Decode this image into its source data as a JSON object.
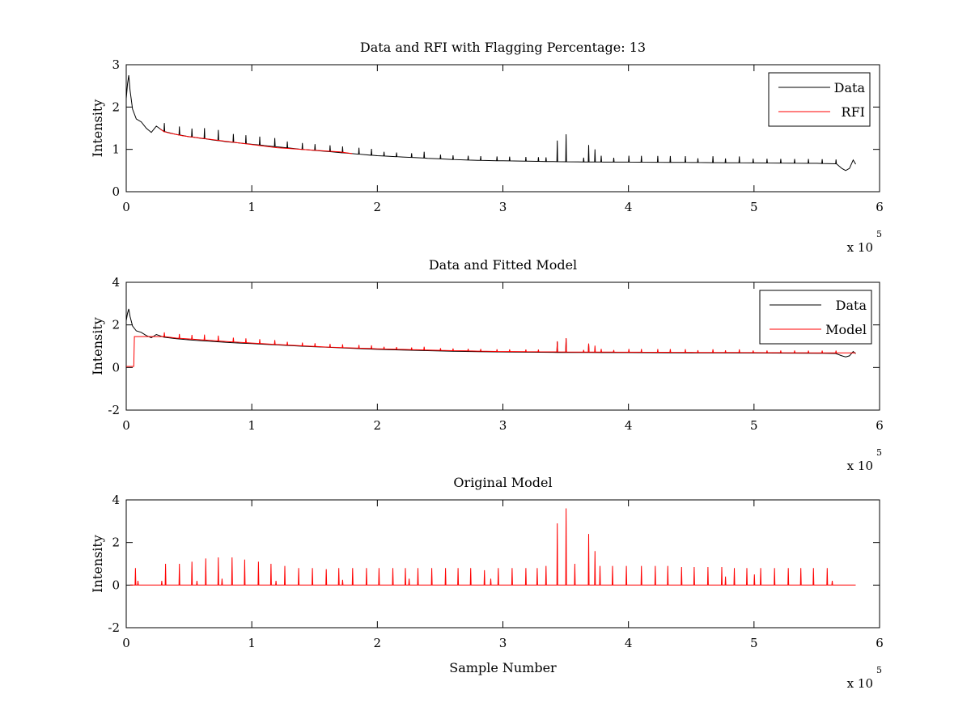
{
  "chart_data": [
    {
      "type": "line",
      "title": "Data and RFI with Flagging Percentage: 13",
      "xlabel": "",
      "ylabel": "Intensity",
      "xlim": [
        0,
        600000
      ],
      "ylim": [
        0,
        3
      ],
      "xticks": [
        0,
        100000,
        200000,
        300000,
        400000,
        500000,
        600000
      ],
      "xtick_labels": [
        "0",
        "1",
        "2",
        "3",
        "4",
        "5",
        "6"
      ],
      "yticks": [
        0,
        1,
        2,
        3
      ],
      "ytick_labels": [
        "0",
        "1",
        "2",
        "3"
      ],
      "x_multiplier": "x 10",
      "x_multiplier_exp": "5",
      "grid": false,
      "legend_position": "top-right",
      "series": [
        {
          "name": "Data",
          "color": "#000000",
          "x": [
            0,
            1000,
            2000,
            3000,
            5000,
            8000,
            12000,
            16000,
            20000,
            24000,
            30000,
            40000,
            50000,
            60000,
            70000,
            80000,
            90000,
            100000,
            110000,
            120000,
            140000,
            160000,
            180000,
            200000,
            220000,
            240000,
            260000,
            280000,
            300000,
            320000,
            340000,
            360000,
            380000,
            400000,
            450000,
            500000,
            550000,
            565000,
            570000,
            573000,
            576000,
            579000,
            581000
          ],
          "values": [
            2.2,
            2.55,
            2.75,
            2.4,
            1.95,
            1.72,
            1.65,
            1.5,
            1.4,
            1.55,
            1.42,
            1.35,
            1.3,
            1.26,
            1.22,
            1.18,
            1.15,
            1.12,
            1.09,
            1.06,
            1.0,
            0.95,
            0.9,
            0.85,
            0.82,
            0.79,
            0.76,
            0.74,
            0.73,
            0.72,
            0.71,
            0.705,
            0.7,
            0.7,
            0.69,
            0.68,
            0.67,
            0.66,
            0.55,
            0.5,
            0.55,
            0.75,
            0.65
          ],
          "spikes": [
            [
              30000,
              0.2
            ],
            [
              42000,
              0.2
            ],
            [
              52000,
              0.2
            ],
            [
              62000,
              0.25
            ],
            [
              73000,
              0.25
            ],
            [
              85000,
              0.2
            ],
            [
              95000,
              0.2
            ],
            [
              106000,
              0.2
            ],
            [
              118000,
              0.2
            ],
            [
              128000,
              0.15
            ],
            [
              140000,
              0.15
            ],
            [
              150000,
              0.15
            ],
            [
              162000,
              0.15
            ],
            [
              172000,
              0.15
            ],
            [
              185000,
              0.15
            ],
            [
              195000,
              0.15
            ],
            [
              205000,
              0.1
            ],
            [
              215000,
              0.1
            ],
            [
              227000,
              0.1
            ],
            [
              237000,
              0.15
            ],
            [
              250000,
              0.1
            ],
            [
              260000,
              0.1
            ],
            [
              272000,
              0.1
            ],
            [
              282000,
              0.1
            ],
            [
              295000,
              0.1
            ],
            [
              305000,
              0.1
            ],
            [
              318000,
              0.1
            ],
            [
              328000,
              0.1
            ],
            [
              334000,
              0.1
            ],
            [
              343000,
              0.5
            ],
            [
              350000,
              0.65
            ],
            [
              364000,
              0.1
            ],
            [
              368000,
              0.4
            ],
            [
              373000,
              0.3
            ],
            [
              378000,
              0.15
            ],
            [
              388000,
              0.1
            ],
            [
              400000,
              0.15
            ],
            [
              410000,
              0.15
            ],
            [
              423000,
              0.15
            ],
            [
              433000,
              0.15
            ],
            [
              445000,
              0.15
            ],
            [
              455000,
              0.1
            ],
            [
              467000,
              0.15
            ],
            [
              477000,
              0.1
            ],
            [
              488000,
              0.15
            ],
            [
              499000,
              0.1
            ],
            [
              510000,
              0.1
            ],
            [
              521000,
              0.1
            ],
            [
              532000,
              0.1
            ],
            [
              543000,
              0.1
            ],
            [
              554000,
              0.1
            ],
            [
              565000,
              0.1
            ]
          ]
        },
        {
          "name": "RFI",
          "color": "#ff0000",
          "x": [
            27000,
            30000,
            35000,
            40000,
            45000,
            120000,
            130000,
            140000,
            150000,
            160000,
            170000,
            180000
          ],
          "values": [
            1.48,
            1.42,
            1.38,
            1.35,
            1.32,
            1.04,
            1.02,
            1.0,
            0.98,
            0.96,
            0.94,
            0.9
          ]
        }
      ]
    },
    {
      "type": "line",
      "title": "Data and Fitted Model",
      "xlabel": "",
      "ylabel": "Intensity",
      "xlim": [
        0,
        600000
      ],
      "ylim": [
        -2,
        4
      ],
      "xticks": [
        0,
        100000,
        200000,
        300000,
        400000,
        500000,
        600000
      ],
      "xtick_labels": [
        "0",
        "1",
        "2",
        "3",
        "4",
        "5",
        "6"
      ],
      "yticks": [
        -2,
        0,
        2,
        4
      ],
      "ytick_labels": [
        "-2",
        "0",
        "2",
        "4"
      ],
      "x_multiplier": "x 10",
      "x_multiplier_exp": "5",
      "grid": false,
      "legend_position": "top-right",
      "series": [
        {
          "name": "Data",
          "color": "#000000",
          "x": [
            0,
            1000,
            2000,
            3000,
            5000,
            8000,
            12000,
            16000,
            20000,
            24000,
            30000,
            40000,
            50000,
            60000,
            70000,
            80000,
            90000,
            100000,
            110000,
            120000,
            140000,
            160000,
            180000,
            200000,
            220000,
            240000,
            260000,
            280000,
            300000,
            320000,
            340000,
            360000,
            380000,
            400000,
            450000,
            500000,
            550000,
            565000,
            570000,
            573000,
            576000,
            579000,
            581000
          ],
          "values": [
            2.2,
            2.55,
            2.75,
            2.4,
            1.95,
            1.72,
            1.65,
            1.5,
            1.4,
            1.55,
            1.42,
            1.35,
            1.3,
            1.26,
            1.22,
            1.18,
            1.15,
            1.12,
            1.09,
            1.06,
            1.0,
            0.95,
            0.9,
            0.85,
            0.82,
            0.79,
            0.76,
            0.74,
            0.73,
            0.72,
            0.71,
            0.705,
            0.7,
            0.7,
            0.69,
            0.68,
            0.67,
            0.66,
            0.55,
            0.5,
            0.55,
            0.75,
            0.65
          ],
          "spikes": [
            [
              343000,
              0.5
            ],
            [
              350000,
              0.65
            ],
            [
              368000,
              0.4
            ]
          ]
        },
        {
          "name": "Model",
          "color": "#ff0000",
          "x": [
            0,
            6000,
            6500,
            20000,
            30000,
            40000,
            60000,
            80000,
            100000,
            120000,
            140000,
            160000,
            180000,
            200000,
            220000,
            240000,
            260000,
            280000,
            300000,
            350000,
            400000,
            450000,
            500000,
            550000,
            581000
          ],
          "values": [
            0.05,
            0.05,
            1.45,
            1.45,
            1.45,
            1.38,
            1.3,
            1.22,
            1.15,
            1.08,
            1.02,
            0.96,
            0.92,
            0.88,
            0.85,
            0.82,
            0.79,
            0.77,
            0.75,
            0.73,
            0.72,
            0.71,
            0.7,
            0.69,
            0.69
          ],
          "spikes": [
            [
              30000,
              0.2
            ],
            [
              42000,
              0.2
            ],
            [
              52000,
              0.2
            ],
            [
              62000,
              0.25
            ],
            [
              73000,
              0.25
            ],
            [
              85000,
              0.2
            ],
            [
              95000,
              0.2
            ],
            [
              106000,
              0.2
            ],
            [
              118000,
              0.2
            ],
            [
              128000,
              0.15
            ],
            [
              140000,
              0.15
            ],
            [
              150000,
              0.15
            ],
            [
              162000,
              0.15
            ],
            [
              172000,
              0.15
            ],
            [
              185000,
              0.15
            ],
            [
              195000,
              0.15
            ],
            [
              205000,
              0.1
            ],
            [
              215000,
              0.1
            ],
            [
              227000,
              0.1
            ],
            [
              237000,
              0.15
            ],
            [
              250000,
              0.1
            ],
            [
              260000,
              0.1
            ],
            [
              272000,
              0.1
            ],
            [
              282000,
              0.1
            ],
            [
              295000,
              0.1
            ],
            [
              305000,
              0.1
            ],
            [
              318000,
              0.1
            ],
            [
              328000,
              0.1
            ],
            [
              343000,
              0.5
            ],
            [
              350000,
              0.65
            ],
            [
              364000,
              0.1
            ],
            [
              368000,
              0.4
            ],
            [
              373000,
              0.3
            ],
            [
              378000,
              0.15
            ],
            [
              388000,
              0.1
            ],
            [
              400000,
              0.15
            ],
            [
              410000,
              0.15
            ],
            [
              423000,
              0.15
            ],
            [
              433000,
              0.15
            ],
            [
              445000,
              0.15
            ],
            [
              455000,
              0.1
            ],
            [
              467000,
              0.15
            ],
            [
              477000,
              0.1
            ],
            [
              488000,
              0.15
            ],
            [
              499000,
              0.1
            ],
            [
              510000,
              0.1
            ],
            [
              521000,
              0.1
            ],
            [
              532000,
              0.1
            ],
            [
              543000,
              0.1
            ],
            [
              554000,
              0.1
            ],
            [
              565000,
              0.1
            ]
          ]
        }
      ]
    },
    {
      "type": "line",
      "title": "Original Model",
      "xlabel": "Sample Number",
      "ylabel": "Intensity",
      "xlim": [
        0,
        600000
      ],
      "ylim": [
        -2,
        4
      ],
      "xticks": [
        0,
        100000,
        200000,
        300000,
        400000,
        500000,
        600000
      ],
      "xtick_labels": [
        "0",
        "1",
        "2",
        "3",
        "4",
        "5",
        "6"
      ],
      "yticks": [
        -2,
        0,
        2,
        4
      ],
      "ytick_labels": [
        "-2",
        "0",
        "2",
        "4"
      ],
      "x_multiplier": "x 10",
      "x_multiplier_exp": "5",
      "grid": false,
      "series": [
        {
          "color": "#ff0000",
          "x": [
            3000,
            581000
          ],
          "values": [
            0,
            0
          ],
          "spikes": [
            [
              7000,
              0.8
            ],
            [
              9000,
              0.2
            ],
            [
              28000,
              0.2
            ],
            [
              31000,
              1.0
            ],
            [
              42000,
              1.0
            ],
            [
              52000,
              1.1
            ],
            [
              56000,
              0.2
            ],
            [
              63000,
              1.25
            ],
            [
              73000,
              1.3
            ],
            [
              76000,
              0.3
            ],
            [
              84000,
              1.3
            ],
            [
              94000,
              1.2
            ],
            [
              105000,
              1.1
            ],
            [
              115000,
              1.0
            ],
            [
              119000,
              0.2
            ],
            [
              126000,
              0.9
            ],
            [
              137000,
              0.8
            ],
            [
              148000,
              0.8
            ],
            [
              159000,
              0.75
            ],
            [
              169000,
              0.8
            ],
            [
              172000,
              0.25
            ],
            [
              180000,
              0.8
            ],
            [
              191000,
              0.8
            ],
            [
              201000,
              0.8
            ],
            [
              212000,
              0.8
            ],
            [
              222000,
              0.8
            ],
            [
              225000,
              0.3
            ],
            [
              232000,
              0.8
            ],
            [
              243000,
              0.8
            ],
            [
              254000,
              0.8
            ],
            [
              264000,
              0.8
            ],
            [
              274000,
              0.8
            ],
            [
              285000,
              0.7
            ],
            [
              290000,
              0.3
            ],
            [
              296000,
              0.8
            ],
            [
              307000,
              0.8
            ],
            [
              318000,
              0.8
            ],
            [
              327000,
              0.8
            ],
            [
              334000,
              0.9
            ],
            [
              343000,
              2.9
            ],
            [
              350000,
              3.6
            ],
            [
              357000,
              1.0
            ],
            [
              368000,
              2.4
            ],
            [
              373000,
              1.6
            ],
            [
              377000,
              0.9
            ],
            [
              387000,
              0.9
            ],
            [
              398000,
              0.9
            ],
            [
              410000,
              0.9
            ],
            [
              421000,
              0.9
            ],
            [
              431000,
              0.9
            ],
            [
              442000,
              0.85
            ],
            [
              452000,
              0.85
            ],
            [
              463000,
              0.85
            ],
            [
              474000,
              0.85
            ],
            [
              477000,
              0.4
            ],
            [
              484000,
              0.8
            ],
            [
              494000,
              0.8
            ],
            [
              500000,
              0.5
            ],
            [
              505000,
              0.8
            ],
            [
              516000,
              0.8
            ],
            [
              527000,
              0.8
            ],
            [
              537000,
              0.8
            ],
            [
              547000,
              0.8
            ],
            [
              558000,
              0.8
            ],
            [
              562000,
              0.2
            ]
          ]
        }
      ]
    }
  ]
}
